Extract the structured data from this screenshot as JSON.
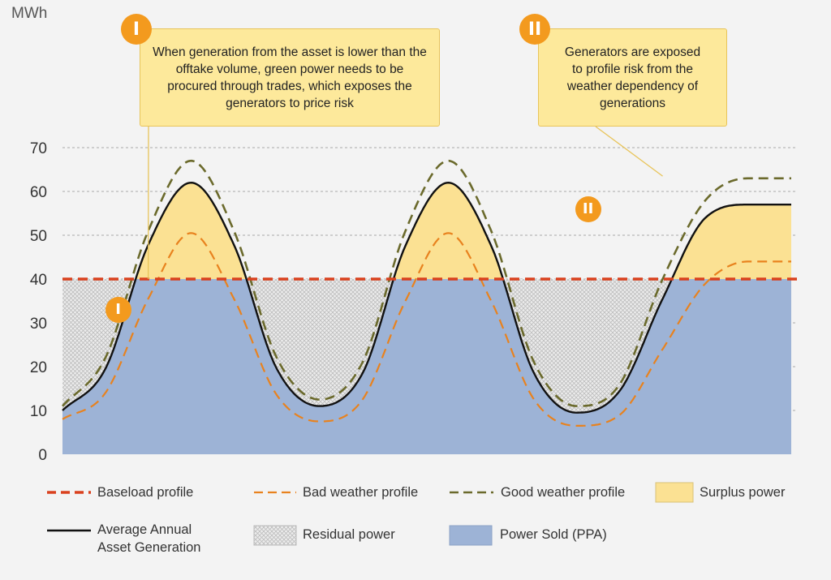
{
  "unit_label": "MWh",
  "callouts": [
    {
      "badge": "I",
      "text": "When generation from the asset is lower than the offtake volume, green power needs to be procured through trades, which exposes the generators to price risk"
    },
    {
      "badge": "II",
      "text": "Generators are exposed to profile risk from the weather dependency of generations"
    }
  ],
  "markers": [
    {
      "text": "I",
      "x": 0.65,
      "y": 33
    },
    {
      "text": "II",
      "x": 6.13,
      "y": 56
    }
  ],
  "legend": [
    {
      "key": "baseload",
      "label": "Baseload profile"
    },
    {
      "key": "bad",
      "label": "Bad weather profile"
    },
    {
      "key": "good",
      "label": "Good weather profile"
    },
    {
      "key": "surplus",
      "label": "Surplus power"
    },
    {
      "key": "average",
      "label": "Average Annual Asset Generation"
    },
    {
      "key": "residual",
      "label": "Residual power"
    },
    {
      "key": "sold",
      "label": "Power Sold (PPA)"
    }
  ],
  "colors": {
    "baseload": "#d9411e",
    "bad": "#e8821e",
    "good": "#6b6a2c",
    "average": "#111111",
    "surplus": "#fbe193",
    "sold": "#9db3d6",
    "residual": "#d2d2d2",
    "badge": "#f39a1e",
    "grid": "#aaaaaa"
  },
  "chart_data": {
    "type": "area",
    "title": "",
    "xlabel": "",
    "ylabel": "MWh",
    "ylim": [
      0,
      70
    ],
    "xlim": [
      0,
      8.5
    ],
    "yticks": [
      0,
      10,
      20,
      30,
      40,
      50,
      60,
      70
    ],
    "grid": true,
    "legend_position": "bottom",
    "x": [
      0.0,
      0.5,
      1.0,
      1.5,
      2.0,
      2.5,
      3.0,
      3.5,
      4.0,
      4.5,
      5.0,
      5.5,
      6.0,
      6.5,
      7.0,
      7.5,
      8.0,
      8.5
    ],
    "series": [
      {
        "name": "Baseload profile",
        "values": [
          40,
          40,
          40,
          40,
          40,
          40,
          40,
          40,
          40,
          40,
          40,
          40,
          40,
          40,
          40,
          40,
          40,
          40
        ]
      },
      {
        "name": "Average Annual Asset Generation",
        "values": [
          10,
          19.5,
          47.8,
          62,
          47.8,
          19.5,
          11,
          18.5,
          47.6,
          62,
          47.6,
          18.5,
          9.5,
          14.5,
          35.5,
          54,
          57,
          57
        ]
      },
      {
        "name": "Bad weather profile",
        "values": [
          8,
          14,
          35.5,
          50.5,
          35.5,
          13.5,
          7.5,
          12.5,
          35,
          50.5,
          35,
          12.5,
          6.5,
          9,
          24,
          39,
          44,
          44
        ]
      },
      {
        "name": "Good weather profile",
        "values": [
          11,
          22,
          51,
          67,
          51,
          22,
          12.5,
          21,
          51,
          67,
          51,
          21,
          11,
          16,
          40,
          58,
          63,
          63
        ]
      }
    ],
    "areas": [
      "Surplus power",
      "Residual power",
      "Power Sold (PPA)"
    ]
  }
}
